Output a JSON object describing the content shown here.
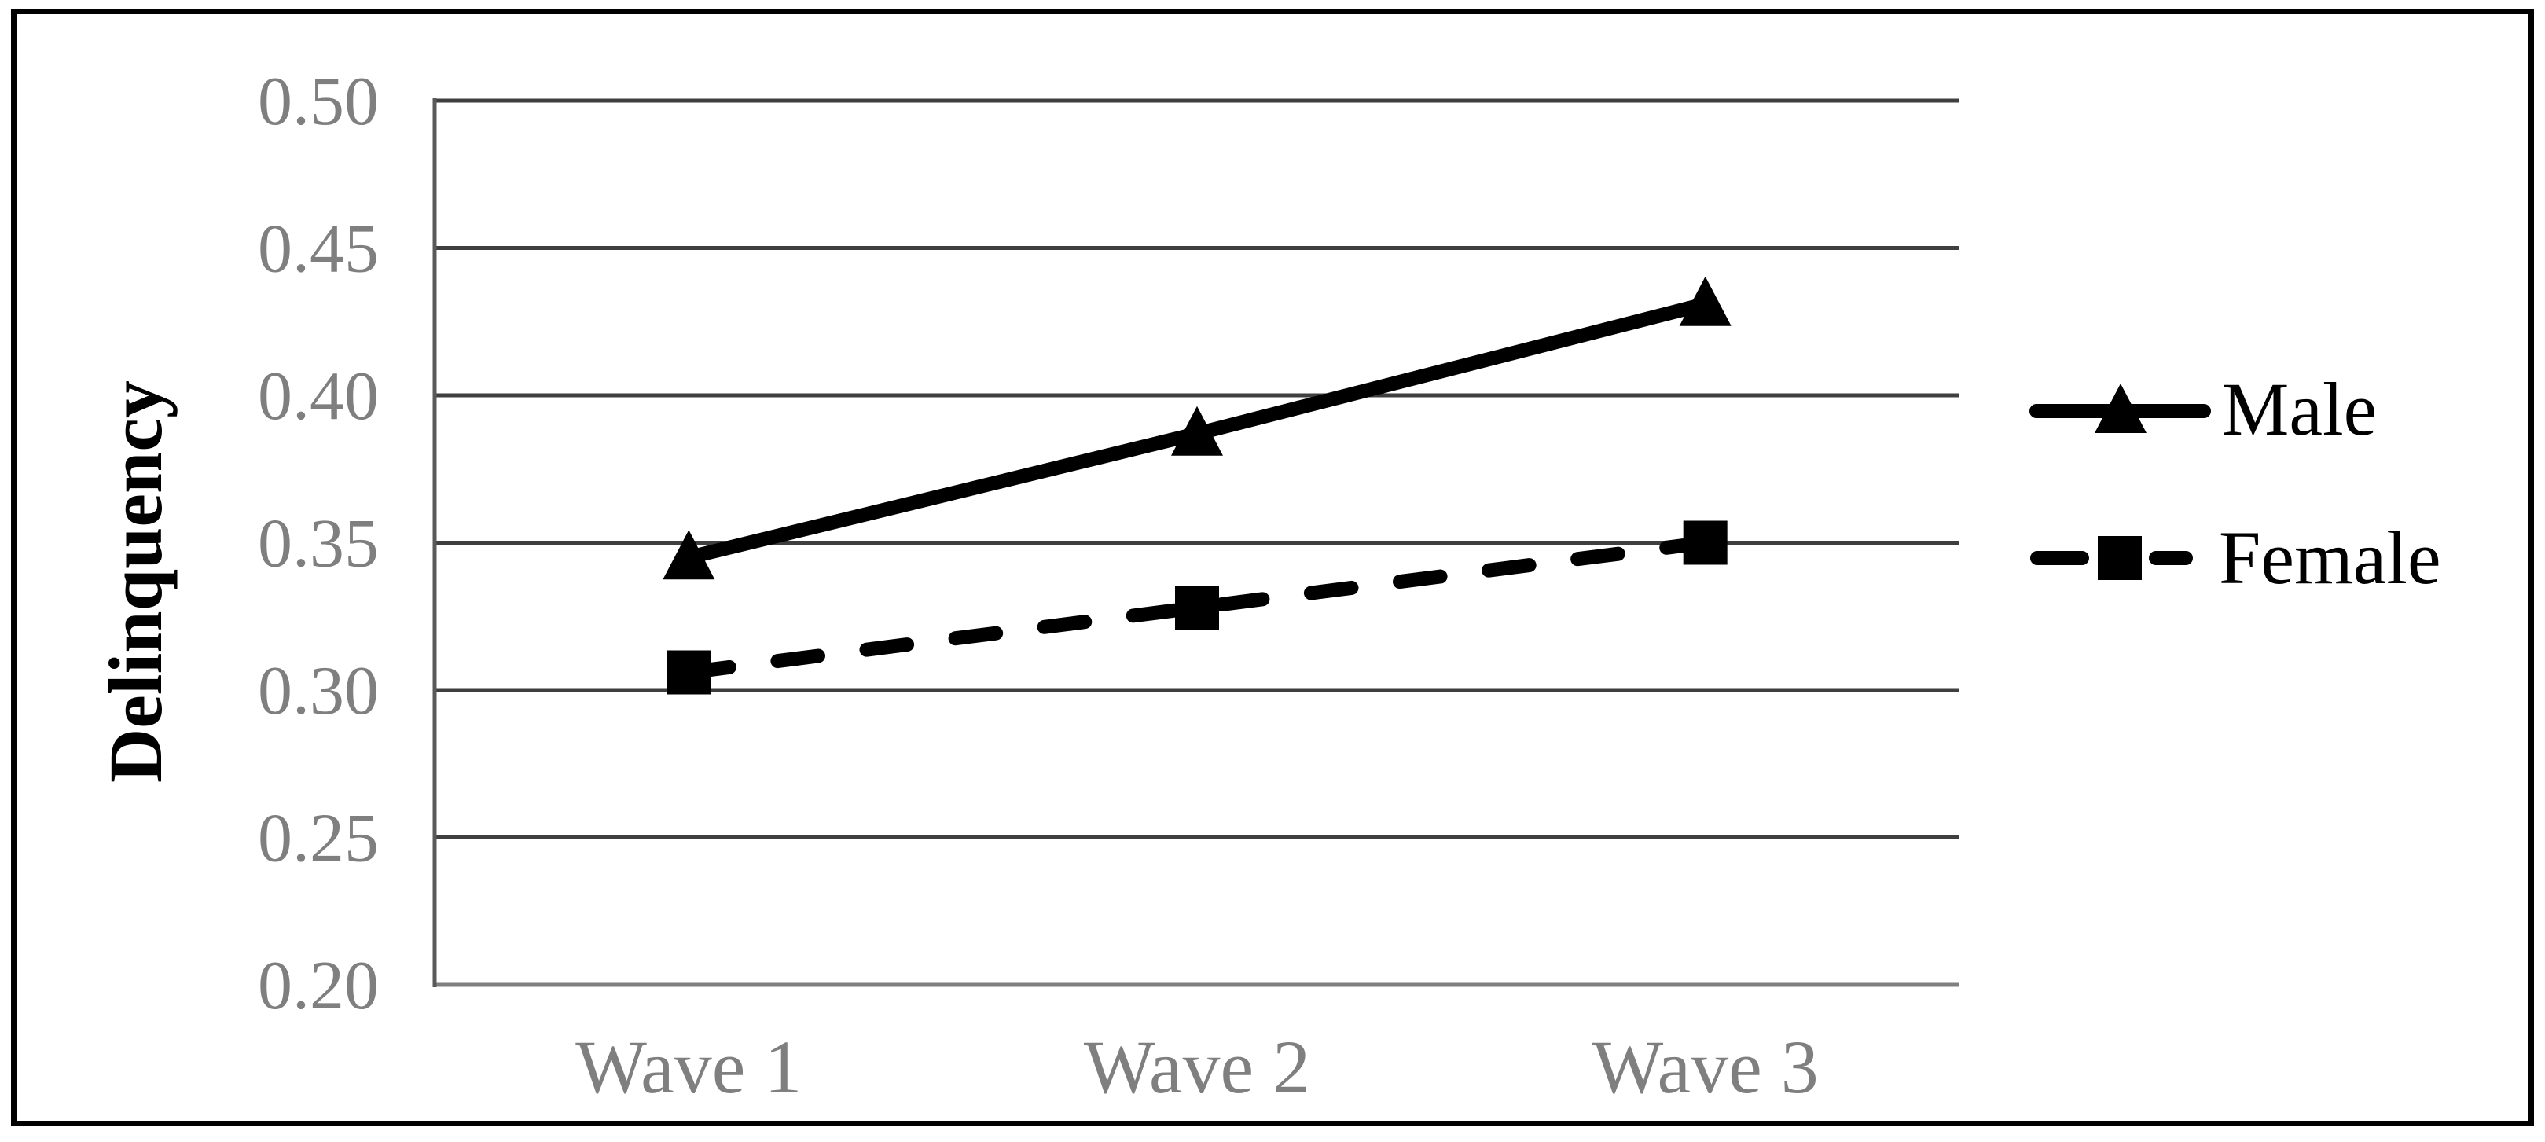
{
  "figure": {
    "background_color": "#ffffff",
    "border_color": "#000000"
  },
  "chart_data": {
    "type": "line",
    "title": "",
    "categories": [
      "Wave 1",
      "Wave 2",
      "Wave 3"
    ],
    "series": [
      {
        "name": "Male",
        "values": [
          0.345,
          0.387,
          0.431
        ],
        "line_style": "solid",
        "marker": "triangle",
        "color": "#000000"
      },
      {
        "name": "Female",
        "values": [
          0.306,
          0.328,
          0.35
        ],
        "line_style": "dashed",
        "marker": "square",
        "color": "#000000"
      }
    ],
    "xlabel": "",
    "ylabel": "Delinquency",
    "ylim": [
      0.2,
      0.5
    ],
    "ytick_step": 0.05,
    "ytick_labels": [
      "0.20",
      "0.25",
      "0.30",
      "0.35",
      "0.40",
      "0.45",
      "0.50"
    ],
    "grid": "horizontal",
    "legend_position": "right",
    "colors": {
      "gridline": "#3f3f3f",
      "y_axis_line": "#595959",
      "x_axis_line": "#7f7f7f",
      "tick_label": "#7f7f7f",
      "series": "#000000"
    }
  }
}
